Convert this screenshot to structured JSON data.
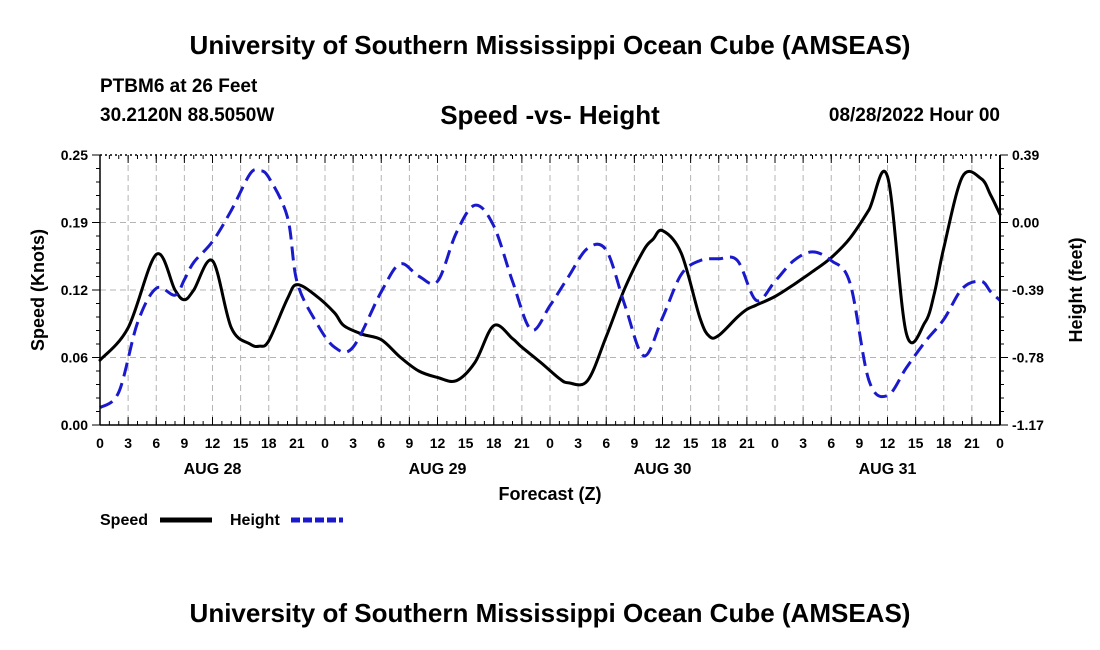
{
  "header": {
    "title": "University of Southern Mississippi Ocean Cube (AMSEAS)",
    "station": "PTBM6 at 26 Feet",
    "coords": "30.2120N  88.5050W",
    "subtitle": "Speed -vs- Height",
    "datetime": "08/28/2022 Hour 00"
  },
  "footer": {
    "title": "University of Southern Mississippi Ocean Cube (AMSEAS)"
  },
  "colors": {
    "speed": "#000000",
    "height": "#1a1acc",
    "grid": "#b4b4b4"
  },
  "chart_data": {
    "type": "line",
    "title": "Speed -vs- Height",
    "xlabel": "Forecast (Z)",
    "ylabel_left": "Speed (Knots)",
    "ylabel_right": "Height (feet)",
    "x_range": [
      0,
      96
    ],
    "x_tick_labels": [
      "0",
      "3",
      "6",
      "9",
      "12",
      "15",
      "18",
      "21",
      "0",
      "3",
      "6",
      "9",
      "12",
      "15",
      "18",
      "21",
      "0",
      "3",
      "6",
      "9",
      "12",
      "15",
      "18",
      "21",
      "0",
      "3",
      "6",
      "9",
      "12",
      "15",
      "18",
      "21",
      "0"
    ],
    "day_labels": [
      {
        "label": "AUG 28",
        "x": 12
      },
      {
        "label": "AUG 29",
        "x": 36
      },
      {
        "label": "AUG 30",
        "x": 60
      },
      {
        "label": "AUG 31",
        "x": 84
      }
    ],
    "y_left": {
      "range": [
        0,
        0.25
      ],
      "ticks": [
        "0.00",
        "0.06",
        "0.12",
        "0.19",
        "0.25"
      ]
    },
    "y_right": {
      "range": [
        -1.17,
        0.39
      ],
      "ticks": [
        "-1.17",
        "-0.78",
        "-0.39",
        "0.00",
        "0.39"
      ]
    },
    "grid": true,
    "legend": "bottom-left",
    "series": [
      {
        "name": "Speed",
        "axis": "left",
        "x": [
          0,
          3,
          6,
          8,
          9,
          10,
          12,
          14,
          16,
          17,
          18,
          20,
          21,
          23,
          25,
          26,
          28,
          30,
          32,
          34,
          36,
          38,
          40,
          42,
          44,
          45,
          47,
          49,
          50,
          52,
          54,
          56,
          58,
          59,
          60,
          62,
          64,
          65,
          66,
          68,
          69,
          70,
          72,
          74,
          75,
          76,
          78,
          80,
          82,
          84,
          86,
          88,
          89,
          90,
          92,
          94,
          95,
          96
        ],
        "values": [
          0.06,
          0.09,
          0.158,
          0.125,
          0.116,
          0.125,
          0.152,
          0.09,
          0.075,
          0.073,
          0.078,
          0.117,
          0.13,
          0.12,
          0.104,
          0.092,
          0.084,
          0.079,
          0.063,
          0.05,
          0.044,
          0.041,
          0.058,
          0.092,
          0.08,
          0.072,
          0.058,
          0.043,
          0.039,
          0.041,
          0.082,
          0.127,
          0.162,
          0.172,
          0.18,
          0.159,
          0.099,
          0.082,
          0.083,
          0.1,
          0.107,
          0.111,
          0.119,
          0.13,
          0.136,
          0.142,
          0.155,
          0.173,
          0.199,
          0.23,
          0.085,
          0.095,
          0.122,
          0.164,
          0.23,
          0.228,
          0.213,
          0.195
        ]
      },
      {
        "name": "Height",
        "axis": "right",
        "x": [
          0,
          2,
          4,
          6,
          8,
          9,
          10,
          12,
          14,
          16,
          17,
          18,
          20,
          21,
          23,
          25,
          27,
          30,
          32,
          34,
          36,
          38,
          40,
          42,
          44,
          46,
          48,
          50,
          52,
          54,
          56,
          58,
          60,
          62,
          64,
          66,
          68,
          70,
          72,
          74,
          76,
          78,
          80,
          82,
          84,
          86,
          88,
          90,
          92,
          94,
          95,
          96
        ],
        "values": [
          -1.07,
          -0.98,
          -0.58,
          -0.38,
          -0.42,
          -0.33,
          -0.23,
          -0.11,
          0.07,
          0.28,
          0.3,
          0.26,
          0.03,
          -0.34,
          -0.57,
          -0.72,
          -0.72,
          -0.4,
          -0.24,
          -0.31,
          -0.34,
          -0.06,
          0.1,
          -0.02,
          -0.34,
          -0.62,
          -0.48,
          -0.31,
          -0.15,
          -0.16,
          -0.48,
          -0.77,
          -0.55,
          -0.3,
          -0.22,
          -0.21,
          -0.22,
          -0.45,
          -0.34,
          -0.22,
          -0.17,
          -0.22,
          -0.35,
          -0.91,
          -1.0,
          -0.84,
          -0.69,
          -0.56,
          -0.38,
          -0.34,
          -0.4,
          -0.45
        ]
      }
    ],
    "legend_entries": [
      "Speed",
      "Height"
    ]
  }
}
